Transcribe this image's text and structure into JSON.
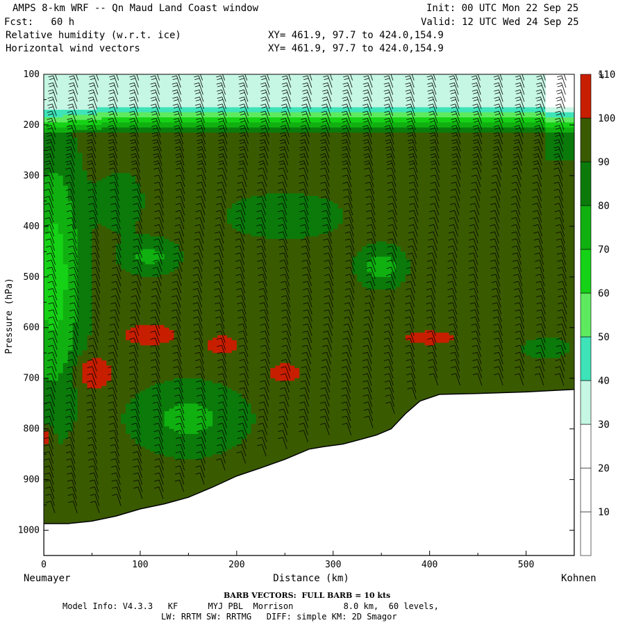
{
  "header": {
    "title": "AMPS 8-km WRF -- Qn Maud Land Coast window",
    "init": "Init: 00 UTC Mon 22 Sep 25",
    "forecast": "Fcst:   60 h",
    "valid": "Valid: 12 UTC Wed 24 Sep 25",
    "field1": "Relative humidity (w.r.t. ice)",
    "field1_xy": "XY= 461.9, 97.7 to 424.0,154.9",
    "field2": "Horizontal wind vectors",
    "field2_xy": "XY= 461.9, 97.7 to 424.0,154.9"
  },
  "footer": {
    "barb_note": "BARB VECTORS:  FULL BARB = 10 kts",
    "model_info_1": "Model Info: V4.3.3   KF      MYJ PBL  Morrison          8.0 km,  60 levels,",
    "model_info_2": "LW: RRTM SW: RRTMG   DIFF: simple KM: 2D Smagor"
  },
  "colors": {
    "bins": [
      "#ffffff",
      "#ffffff",
      "#ffffff",
      "#c6f6e4",
      "#3ee3b8",
      "#5eea5e",
      "#16d216",
      "#10b010",
      "#0b7a0b",
      "#3a5a00",
      "#c81e00"
    ],
    "terrain": "#ffffff"
  },
  "chart_data": {
    "type": "cross-section",
    "xlabel": "Distance (km)",
    "ylabel": "Pressure (hPa)",
    "xlim": [
      0,
      550
    ],
    "ylim": [
      1050,
      100
    ],
    "x_ticks": [
      0,
      100,
      200,
      300,
      400,
      500
    ],
    "y_ticks": [
      100,
      200,
      300,
      400,
      500,
      600,
      700,
      800,
      900,
      1000
    ],
    "left_endpoint": "Neumayer",
    "right_endpoint": "Kohnen",
    "colorbar": {
      "unit": "%",
      "levels": [
        10,
        20,
        30,
        40,
        50,
        60,
        70,
        80,
        90,
        100,
        110
      ]
    },
    "terrain_surface": {
      "distance_km": [
        0,
        25,
        50,
        75,
        100,
        125,
        150,
        175,
        200,
        225,
        250,
        275,
        290,
        310,
        330,
        345,
        360,
        375,
        390,
        410,
        450,
        500,
        550
      ],
      "pressure_hPa": [
        987,
        987,
        982,
        972,
        958,
        948,
        935,
        915,
        893,
        877,
        860,
        840,
        835,
        830,
        820,
        812,
        800,
        770,
        745,
        732,
        730,
        727,
        722
      ]
    },
    "rh_max_regions": [
      {
        "distance_km": 50,
        "pressure_hPa": 690,
        "value_min": 110
      },
      {
        "distance_km": 110,
        "pressure_hPa": 615,
        "value_min": 110
      },
      {
        "distance_km": 185,
        "pressure_hPa": 635,
        "value_min": 110
      },
      {
        "distance_km": 250,
        "pressure_hPa": 690,
        "value_min": 110
      },
      {
        "distance_km": 3,
        "pressure_hPa": 815,
        "value_min": 110
      }
    ]
  }
}
